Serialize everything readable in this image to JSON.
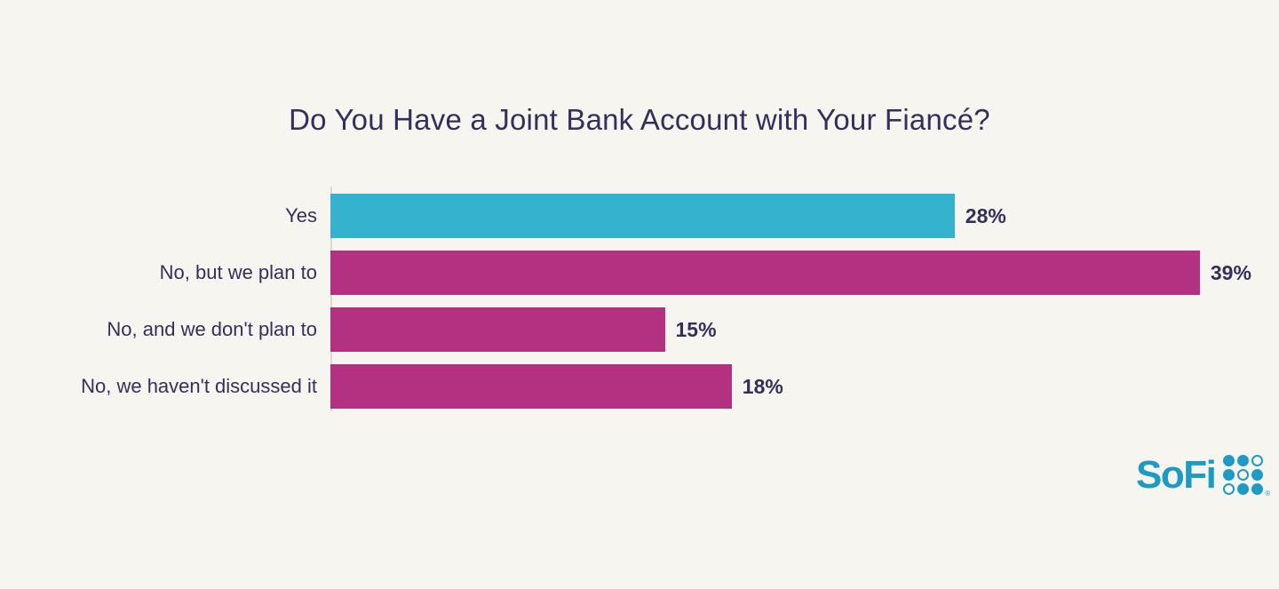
{
  "title": "Do You Have a Joint Bank Account with Your Fiancé?",
  "chart_data": {
    "type": "bar",
    "orientation": "horizontal",
    "title": "Do You Have a Joint Bank Account with Your Fiancé?",
    "categories": [
      "Yes",
      "No, but we plan to",
      "No, and we don't plan to",
      "No, we haven't discussed it"
    ],
    "values": [
      28,
      39,
      15,
      18
    ],
    "value_labels": [
      "28%",
      "39%",
      "15%",
      "18%"
    ],
    "bar_colors": [
      "#35b2ce",
      "#b23180",
      "#b23180",
      "#b23180"
    ],
    "xlim": [
      0,
      42.5
    ],
    "grid": false,
    "legend": "none",
    "value_label_position": "end-of-bar"
  },
  "colors": {
    "background": "#f7f5f0",
    "text": "#34305b",
    "teal": "#35b2ce",
    "magenta": "#b23180",
    "axis_line": "#dcd9d3",
    "logo": "#1d9bc2"
  },
  "logo": {
    "text": "SoFi",
    "registered_mark": "®"
  }
}
